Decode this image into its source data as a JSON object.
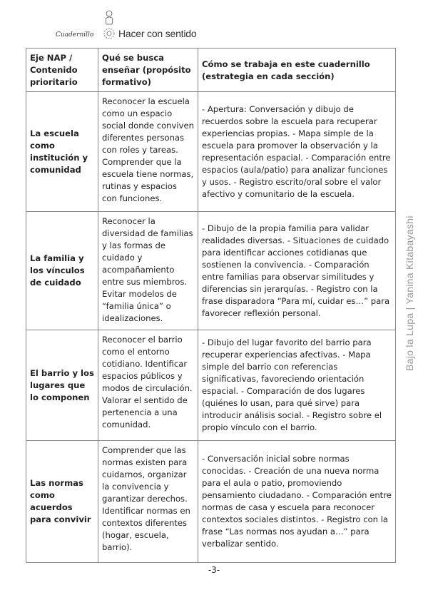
{
  "header": {
    "brand": "Cuadernillo",
    "title": "Hacer con sentido"
  },
  "table": {
    "headers": [
      "Eje NAP / Contenido prioritario",
      "Qué se busca enseñar (propósito formativo)",
      "Cómo se trabaja en este cuadernillo (estrategia en cada sección)"
    ],
    "rows": [
      {
        "axis": "La escuela como institución y comunidad",
        "purpose": "Reconocer la escuela como un espacio social donde conviven diferentes personas con roles y tareas. Comprender que la escuela tiene normas, rutinas y espacios con funciones.",
        "strategy": "- Apertura: Conversación y dibujo de recuerdos sobre la escuela para recuperar experiencias propias. - Mapa simple de la escuela para promover la observación y la representación espacial. - Comparación entre espacios (aula/patio) para analizar funciones y usos. - Registro escrito/oral sobre el valor afectivo y comunitario de la escuela."
      },
      {
        "axis": "La familia y los vínculos de cuidado",
        "purpose": "Reconocer la diversidad de familias y las formas de cuidado y acompañamiento entre sus miembros. Evitar modelos de “familia única” o idealizaciones.",
        "strategy": "- Dibujo de la propia familia para validar realidades diversas. - Situaciones de cuidado para identificar acciones cotidianas que sostienen la convivencia. - Comparación entre familias para observar similitudes y diferencias sin jerarquías. - Registro con la frase disparadora “Para mí, cuidar es…” para favorecer reflexión personal."
      },
      {
        "axis": "El barrio y los lugares que lo componen",
        "purpose": "Reconocer el barrio como el entorno cotidiano. Identificar espacios públicos y modos de circulación. Valorar el sentido de pertenencia a una comunidad.",
        "strategy": "- Dibujo del lugar favorito del barrio para recuperar experiencias afectivas. - Mapa simple del barrio con referencias significativas, favoreciendo orientación espacial. - Comparación de dos lugares (quiénes lo usan, para qué sirve) para introducir análisis social. - Registro sobre el propio vínculo con el barrio."
      },
      {
        "axis": "Las normas como acuerdos para convivir",
        "purpose": "Comprender que las normas existen para cuidarnos, organizar la convivencia y garantizar derechos. Identificar normas en contextos diferentes (hogar, escuela, barrio).",
        "strategy": "- Conversación inicial sobre normas conocidas. - Creación de una nueva norma para el aula o patio, promoviendo pensamiento ciudadano. - Comparación entre normas de casa y escuela para reconocer contextos sociales distintos. - Registro con la frase “Las normas nos ayudan a…” para verbalizar sentido."
      }
    ]
  },
  "side_text": "Bajo la Lupa | Yanina Kitabayashi",
  "page_number": "-3-"
}
